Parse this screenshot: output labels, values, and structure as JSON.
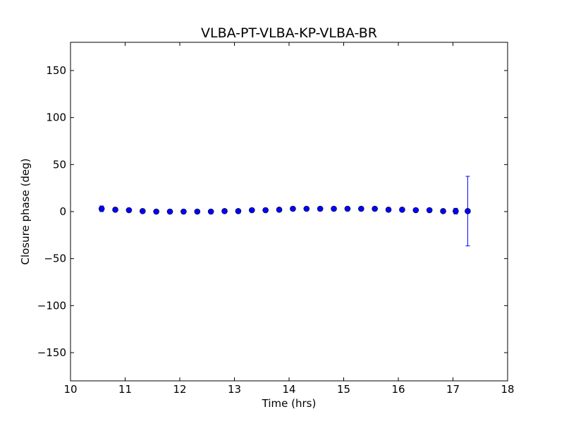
{
  "chart_data": {
    "type": "scatter",
    "title": "VLBA-PT-VLBA-KP-VLBA-BR",
    "xlabel": "Time (hrs)",
    "ylabel": "Closure phase (deg)",
    "xlim": [
      10,
      18
    ],
    "ylim": [
      -180,
      180
    ],
    "xticks": [
      10,
      11,
      12,
      13,
      14,
      15,
      16,
      17,
      18
    ],
    "xtick_labels": [
      "10",
      "11",
      "12",
      "13",
      "14",
      "15",
      "16",
      "17",
      "18"
    ],
    "yticks": [
      -150,
      -100,
      -50,
      0,
      50,
      100,
      150
    ],
    "ytick_labels": [
      "−150",
      "−100",
      "−50",
      "0",
      "50",
      "100",
      "150"
    ],
    "grid": false,
    "series": [
      {
        "marker_color": "#0000ff",
        "errorbar_color": "#0000ff",
        "points": [
          {
            "x": 10.57,
            "y": 3.0,
            "err": 3.0
          },
          {
            "x": 10.82,
            "y": 2.0,
            "err": 1.0
          },
          {
            "x": 11.07,
            "y": 1.5,
            "err": 1.0
          },
          {
            "x": 11.32,
            "y": 0.5,
            "err": 1.0
          },
          {
            "x": 11.57,
            "y": 0.0,
            "err": 1.0
          },
          {
            "x": 11.82,
            "y": 0.0,
            "err": 1.0
          },
          {
            "x": 12.07,
            "y": 0.0,
            "err": 1.0
          },
          {
            "x": 12.32,
            "y": 0.0,
            "err": 1.0
          },
          {
            "x": 12.57,
            "y": 0.0,
            "err": 1.0
          },
          {
            "x": 12.82,
            "y": 0.5,
            "err": 1.0
          },
          {
            "x": 13.07,
            "y": 0.5,
            "err": 1.0
          },
          {
            "x": 13.32,
            "y": 1.5,
            "err": 1.0
          },
          {
            "x": 13.57,
            "y": 1.5,
            "err": 1.0
          },
          {
            "x": 13.82,
            "y": 2.0,
            "err": 1.0
          },
          {
            "x": 14.07,
            "y": 3.0,
            "err": 1.0
          },
          {
            "x": 14.32,
            "y": 3.0,
            "err": 1.0
          },
          {
            "x": 14.57,
            "y": 3.0,
            "err": 1.0
          },
          {
            "x": 14.82,
            "y": 3.0,
            "err": 1.0
          },
          {
            "x": 15.07,
            "y": 3.0,
            "err": 1.0
          },
          {
            "x": 15.32,
            "y": 3.0,
            "err": 1.0
          },
          {
            "x": 15.57,
            "y": 3.0,
            "err": 1.0
          },
          {
            "x": 15.82,
            "y": 2.0,
            "err": 1.0
          },
          {
            "x": 16.07,
            "y": 2.0,
            "err": 1.0
          },
          {
            "x": 16.32,
            "y": 1.5,
            "err": 1.0
          },
          {
            "x": 16.57,
            "y": 1.5,
            "err": 1.0
          },
          {
            "x": 16.82,
            "y": 0.5,
            "err": 1.0
          },
          {
            "x": 17.05,
            "y": 0.5,
            "err": 3.0
          },
          {
            "x": 17.27,
            "y": 0.5,
            "err": 37.0
          }
        ]
      }
    ]
  }
}
